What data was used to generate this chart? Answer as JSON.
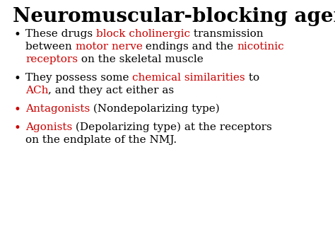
{
  "title": "Neuromuscular-blocking agents",
  "background_color": "#ffffff",
  "title_color": "#000000",
  "title_fontsize": 20,
  "red_color": "#cc0000",
  "black_color": "#000000",
  "fig_width": 4.74,
  "fig_height": 3.55,
  "dpi": 100,
  "bullet_items": [
    {
      "bullet_color": "#000000",
      "lines": [
        [
          {
            "text": "These drugs ",
            "color": "#000000"
          },
          {
            "text": "block cholinergic",
            "color": "#cc0000"
          },
          {
            "text": " transmission",
            "color": "#000000"
          }
        ],
        [
          {
            "text": "between ",
            "color": "#000000"
          },
          {
            "text": "motor nerve",
            "color": "#cc0000"
          },
          {
            "text": " endings and the ",
            "color": "#000000"
          },
          {
            "text": "nicotinic",
            "color": "#cc0000"
          }
        ],
        [
          {
            "text": "receptors",
            "color": "#cc0000"
          },
          {
            "text": " on the skeletal muscle",
            "color": "#000000"
          }
        ]
      ]
    },
    {
      "bullet_color": "#000000",
      "lines": [
        [
          {
            "text": "They possess some ",
            "color": "#000000"
          },
          {
            "text": "chemical similarities",
            "color": "#cc0000"
          },
          {
            "text": " to",
            "color": "#000000"
          }
        ],
        [
          {
            "text": "ACh",
            "color": "#cc0000"
          },
          {
            "text": ", and they act either as",
            "color": "#000000"
          }
        ]
      ]
    },
    {
      "bullet_color": "#cc0000",
      "lines": [
        [
          {
            "text": "Antagonists",
            "color": "#cc0000"
          },
          {
            "text": " (Nondepolarizing type)",
            "color": "#000000"
          }
        ]
      ]
    },
    {
      "bullet_color": "#cc0000",
      "lines": [
        [
          {
            "text": "Agonists",
            "color": "#cc0000"
          },
          {
            "text": " (Depolarizing type) at the receptors",
            "color": "#000000"
          }
        ],
        [
          {
            "text": "on the endplate of the NMJ.",
            "color": "#000000"
          }
        ]
      ]
    }
  ]
}
